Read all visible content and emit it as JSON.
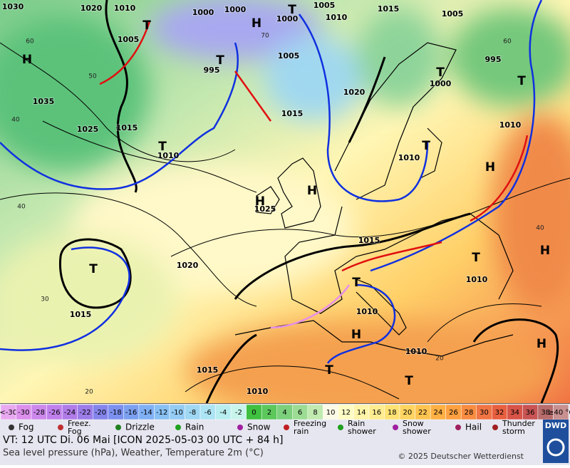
{
  "map": {
    "pressure_labels": [
      "1030",
      "1020",
      "1010",
      "1005",
      "1000",
      "1000",
      "1000",
      "1005",
      "1010",
      "1015",
      "1005",
      "1005",
      "995",
      "1000",
      "995",
      "1035",
      "1025",
      "1015",
      "1010",
      "1015",
      "1020",
      "1010",
      "1010",
      "1025",
      "1020",
      "1015",
      "1015",
      "1010",
      "1010",
      "1010",
      "1015",
      "1010"
    ],
    "centers": [
      "H",
      "H",
      "H",
      "H",
      "H",
      "H",
      "H",
      "T",
      "T",
      "T",
      "T",
      "T",
      "T",
      "T",
      "T",
      "T",
      "T",
      "T",
      "T",
      "H"
    ],
    "temp_labels": [
      "60",
      "50",
      "40",
      "70",
      "60",
      "40",
      "30",
      "20",
      "40",
      "20"
    ]
  },
  "legend": {
    "scale": [
      {
        "label": "<-30",
        "color": "#e8a8f0"
      },
      {
        "label": "-30",
        "color": "#dc90ec"
      },
      {
        "label": "-28",
        "color": "#cc88ec"
      },
      {
        "label": "-26",
        "color": "#c080ec"
      },
      {
        "label": "-24",
        "color": "#b07ce8"
      },
      {
        "label": "-22",
        "color": "#9c7ce8"
      },
      {
        "label": "-20",
        "color": "#8484ec"
      },
      {
        "label": "-18",
        "color": "#7c90f0"
      },
      {
        "label": "-16",
        "color": "#7ca0f0"
      },
      {
        "label": "-14",
        "color": "#80b0f4"
      },
      {
        "label": "-12",
        "color": "#88c0f4"
      },
      {
        "label": "-10",
        "color": "#94ccf4"
      },
      {
        "label": "-8",
        "color": "#a0d8f4"
      },
      {
        "label": "-6",
        "color": "#ace4f4"
      },
      {
        "label": "-4",
        "color": "#b8eef0"
      },
      {
        "label": "-2",
        "color": "#c8f4ec"
      },
      {
        "label": "0",
        "color": "#40c040"
      },
      {
        "label": "2",
        "color": "#5cc85c"
      },
      {
        "label": "4",
        "color": "#7cd07c"
      },
      {
        "label": "6",
        "color": "#9cdc94"
      },
      {
        "label": "8",
        "color": "#c0eab0"
      },
      {
        "label": "10",
        "color": "#fafae6"
      },
      {
        "label": "12",
        "color": "#fffcc4"
      },
      {
        "label": "14",
        "color": "#fff4a8"
      },
      {
        "label": "16",
        "color": "#ffec90"
      },
      {
        "label": "18",
        "color": "#ffe274"
      },
      {
        "label": "20",
        "color": "#ffd460"
      },
      {
        "label": "22",
        "color": "#ffc450"
      },
      {
        "label": "24",
        "color": "#ffb044"
      },
      {
        "label": "26",
        "color": "#ffa040"
      },
      {
        "label": "28",
        "color": "#f88c40"
      },
      {
        "label": "30",
        "color": "#f07444"
      },
      {
        "label": "32",
        "color": "#e86040"
      },
      {
        "label": "34",
        "color": "#d85448"
      },
      {
        "label": "36",
        "color": "#c85454"
      },
      {
        "label": "38",
        "color": "#b86c6c"
      },
      {
        "label": "≥40 °C",
        "color": "#c89090"
      }
    ],
    "items": [
      "Fog",
      "Freez. Fog",
      "Drizzle",
      "Rain",
      "Snow",
      "Freezing rain",
      "Rain shower",
      "Snow shower",
      "Hail",
      "Thunder storm"
    ]
  },
  "footer": {
    "valid": "VT: 12 UTC Di.  06 Mai [ICON 2025-05-03  00 UTC + 84 h]",
    "subtitle": "Sea level pressure (hPa), Weather, Temperature 2m (°C)",
    "copyright": "© 2025 Deutscher Wetterdienst",
    "logo": "DWD"
  }
}
